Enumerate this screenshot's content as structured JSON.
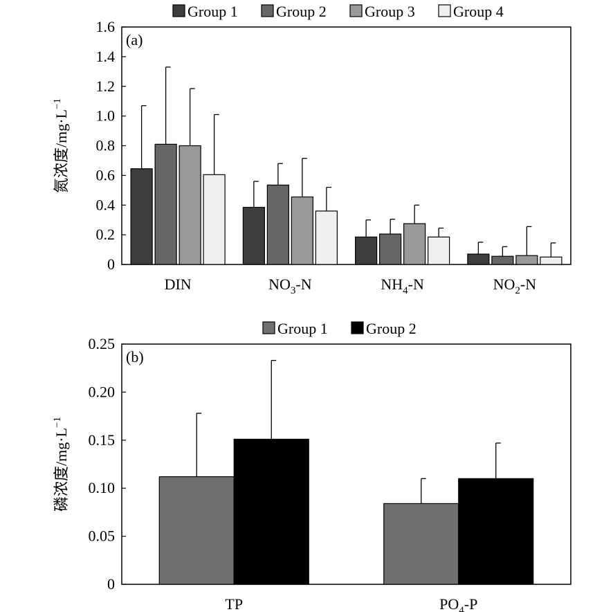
{
  "chart_data": [
    {
      "type": "bar",
      "panel_label": "(a)",
      "categories": [
        {
          "main": "DIN",
          "sub": "",
          "suffix": ""
        },
        {
          "main": "NO",
          "sub": "3",
          "suffix": "-N"
        },
        {
          "main": "NH",
          "sub": "4",
          "suffix": "-N"
        },
        {
          "main": "NO",
          "sub": "2",
          "suffix": "-N"
        }
      ],
      "series": [
        {
          "name": "Group 1",
          "color": "#3d3d3d",
          "values": [
            0.645,
            0.385,
            0.185,
            0.07
          ],
          "errors": [
            0.425,
            0.175,
            0.115,
            0.08
          ]
        },
        {
          "name": "Group 2",
          "color": "#666666",
          "values": [
            0.81,
            0.535,
            0.205,
            0.055
          ],
          "errors": [
            0.52,
            0.145,
            0.1,
            0.065
          ]
        },
        {
          "name": "Group 3",
          "color": "#999999",
          "values": [
            0.8,
            0.455,
            0.275,
            0.06
          ],
          "errors": [
            0.385,
            0.26,
            0.125,
            0.195
          ]
        },
        {
          "name": "Group 4",
          "color": "#efefef",
          "values": [
            0.605,
            0.36,
            0.185,
            0.05
          ],
          "errors": [
            0.405,
            0.16,
            0.06,
            0.095
          ]
        }
      ],
      "ylabel_main": "氮浓度/mg·L",
      "ylabel_sup": "−1",
      "ylim": [
        0,
        1.6
      ],
      "yticks": [
        "0",
        "0.2",
        "0.4",
        "0.6",
        "0.8",
        "1.0",
        "1.2",
        "1.4",
        "1.6"
      ],
      "legend_position": "top",
      "grid": false
    },
    {
      "type": "bar",
      "panel_label": "(b)",
      "categories": [
        {
          "main": "TP",
          "sub": "",
          "suffix": ""
        },
        {
          "main": "PO",
          "sub": "4",
          "suffix": "-P"
        }
      ],
      "series": [
        {
          "name": "Group 1",
          "color": "#707070",
          "values": [
            0.112,
            0.084
          ],
          "errors": [
            0.066,
            0.026
          ]
        },
        {
          "name": "Group 2",
          "color": "#000000",
          "values": [
            0.151,
            0.11
          ],
          "errors": [
            0.082,
            0.037
          ]
        }
      ],
      "ylabel_main": "磷浓度/mg·L",
      "ylabel_sup": "−1",
      "ylim": [
        0,
        0.25
      ],
      "yticks": [
        "0",
        "0.05",
        "0.10",
        "0.15",
        "0.20",
        "0.25"
      ],
      "legend_position": "top",
      "grid": false
    }
  ]
}
